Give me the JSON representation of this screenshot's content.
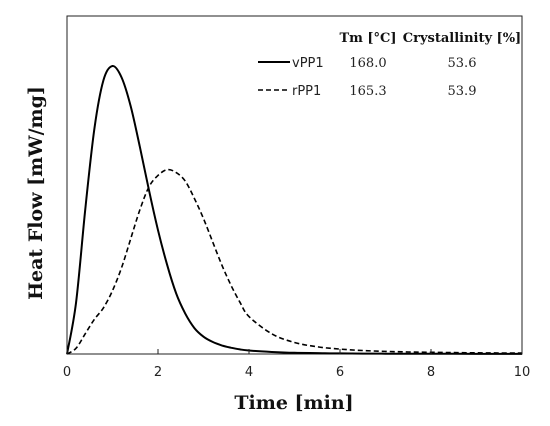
{
  "chart_data": {
    "type": "line",
    "title": "",
    "xlabel": "Time [min]",
    "ylabel": "Heat Flow [mW/mg]",
    "xlim": [
      0,
      10
    ],
    "ylim": [
      0,
      1
    ],
    "xticks": [
      "0",
      "2",
      "4",
      "6",
      "8",
      "10"
    ],
    "yticks": [],
    "grid": false,
    "legend_position": "top-right",
    "x": [
      0,
      0.2,
      0.4,
      0.6,
      0.8,
      1.0,
      1.2,
      1.4,
      1.6,
      1.8,
      2.0,
      2.2,
      2.4,
      2.6,
      2.8,
      3.0,
      3.2,
      3.4,
      3.6,
      3.8,
      4.0,
      4.5,
      5.0,
      5.5,
      6.0,
      6.5,
      7.0,
      7.5,
      8.0,
      8.5,
      9.0,
      9.5,
      10.0
    ],
    "series": [
      {
        "name": "vPP1",
        "style": "solid",
        "color": "#000000",
        "tm": "168.0",
        "crystallinity": "53.6",
        "values": [
          0,
          0.18,
          0.5,
          0.78,
          0.95,
          1.0,
          0.96,
          0.86,
          0.72,
          0.57,
          0.43,
          0.31,
          0.21,
          0.14,
          0.09,
          0.06,
          0.042,
          0.03,
          0.022,
          0.016,
          0.012,
          0.007,
          0.004,
          0.003,
          0.002,
          0.0015,
          0.001,
          0.001,
          0.0008,
          0.0006,
          0.0005,
          0.0004,
          0.0003
        ]
      },
      {
        "name": "rPP1",
        "style": "dashed",
        "color": "#000000",
        "tm": "165.3",
        "crystallinity": "53.9",
        "values": [
          0,
          0.02,
          0.07,
          0.12,
          0.16,
          0.22,
          0.3,
          0.4,
          0.5,
          0.58,
          0.62,
          0.64,
          0.63,
          0.6,
          0.54,
          0.47,
          0.39,
          0.31,
          0.24,
          0.18,
          0.13,
          0.07,
          0.04,
          0.025,
          0.017,
          0.012,
          0.009,
          0.007,
          0.006,
          0.005,
          0.004,
          0.0035,
          0.003
        ]
      }
    ],
    "legend_table": {
      "headers": [
        "Tm [°C]",
        "Crystallinity [%]"
      ]
    }
  }
}
